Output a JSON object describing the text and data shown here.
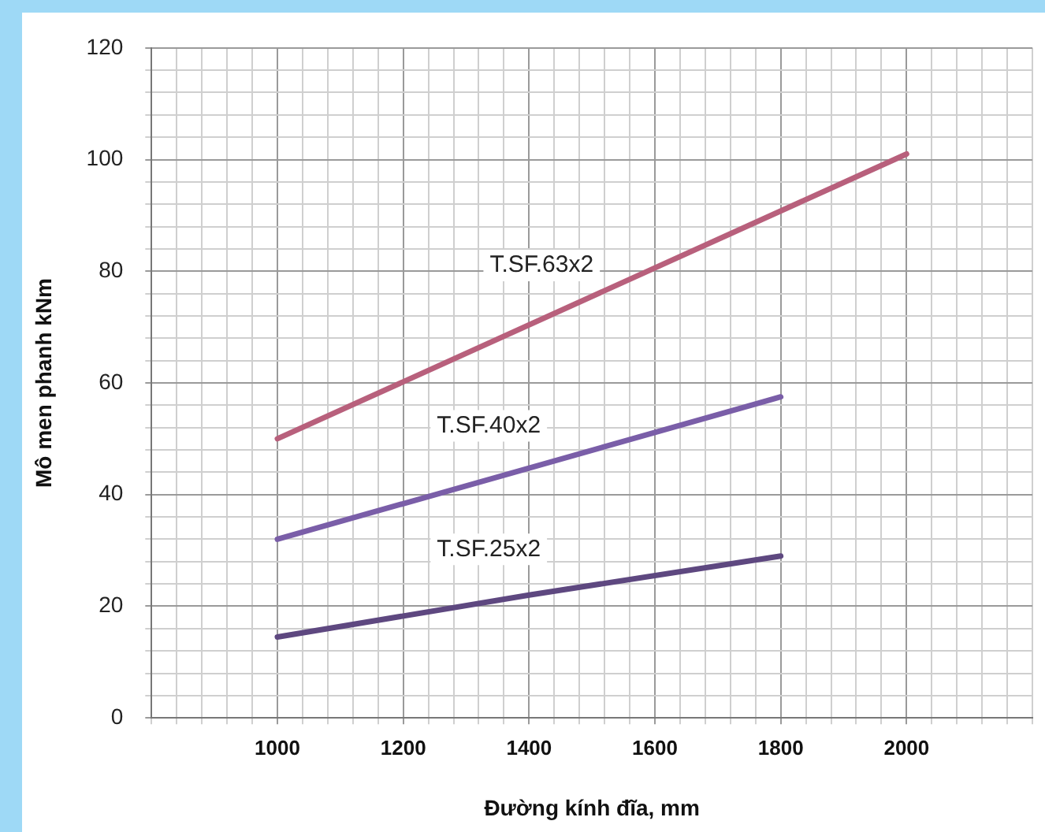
{
  "chart_data": {
    "type": "line",
    "xlabel": "Đường kính đĩa, mm",
    "ylabel": "Mô men phanh kNm",
    "series": [
      {
        "name": "T.SF.63x2",
        "color": "#b8607c",
        "x": [
          1000,
          2000
        ],
        "values": [
          50,
          101
        ]
      },
      {
        "name": "T.SF.40x2",
        "color": "#7a5ea8",
        "x": [
          1000,
          1800
        ],
        "values": [
          32,
          57.5
        ]
      },
      {
        "name": "T.SF.25x2",
        "color": "#5e4880",
        "x": [
          1000,
          1400,
          1800
        ],
        "values": [
          14.5,
          22,
          29
        ]
      }
    ],
    "xlim": [
      800,
      2200
    ],
    "xticks": [
      {
        "value": 800,
        "label": null
      },
      {
        "value": 840,
        "label": null
      },
      {
        "value": 880,
        "label": null
      },
      {
        "value": 920,
        "label": null
      },
      {
        "value": 960,
        "label": null
      },
      1000,
      {
        "value": 1040,
        "label": null
      },
      {
        "value": 1080,
        "label": null
      },
      {
        "value": 1120,
        "label": null
      },
      {
        "value": 1160,
        "label": null
      },
      1200,
      {
        "value": 1240,
        "label": null
      },
      {
        "value": 1280,
        "label": null
      },
      {
        "value": 1320,
        "label": null
      },
      {
        "value": 1360,
        "label": null
      },
      1400,
      {
        "value": 1440,
        "label": null
      },
      {
        "value": 1480,
        "label": null
      },
      {
        "value": 1520,
        "label": null
      },
      {
        "value": 1560,
        "label": null
      },
      1600,
      {
        "value": 1640,
        "label": null
      },
      {
        "value": 1680,
        "label": null
      },
      {
        "value": 1720,
        "label": null
      },
      {
        "value": 1760,
        "label": null
      },
      1800,
      {
        "value": 1840,
        "label": null
      },
      {
        "value": 1880,
        "label": null
      },
      {
        "value": 1920,
        "label": null
      },
      {
        "value": 1960,
        "label": null
      },
      2000,
      {
        "value": 2040,
        "label": null
      },
      {
        "value": 2080,
        "label": null
      },
      {
        "value": 2120,
        "label": null
      },
      {
        "value": 2160,
        "label": null
      },
      {
        "value": 2200,
        "label": null
      }
    ],
    "ylim": [
      0,
      120
    ],
    "yticks": [
      0,
      {
        "value": 4,
        "label": null
      },
      {
        "value": 8,
        "label": null
      },
      {
        "value": 12,
        "label": null
      },
      {
        "value": 16,
        "label": null
      },
      20,
      {
        "value": 24,
        "label": null
      },
      {
        "value": 28,
        "label": null
      },
      {
        "value": 32,
        "label": null
      },
      {
        "value": 36,
        "label": null
      },
      40,
      {
        "value": 44,
        "label": null
      },
      {
        "value": 48,
        "label": null
      },
      {
        "value": 52,
        "label": null
      },
      {
        "value": 56,
        "label": null
      },
      60,
      {
        "value": 64,
        "label": null
      },
      {
        "value": 68,
        "label": null
      },
      {
        "value": 72,
        "label": null
      },
      {
        "value": 76,
        "label": null
      },
      80,
      {
        "value": 84,
        "label": null
      },
      {
        "value": 88,
        "label": null
      },
      {
        "value": 92,
        "label": null
      },
      {
        "value": 96,
        "label": null
      },
      100,
      {
        "value": 104,
        "label": null
      },
      {
        "value": 108,
        "label": null
      },
      {
        "value": 112,
        "label": null
      },
      {
        "value": 116,
        "label": null
      },
      120
    ],
    "grid": true,
    "legend": false,
    "marker": "none",
    "line_style": "solid"
  }
}
